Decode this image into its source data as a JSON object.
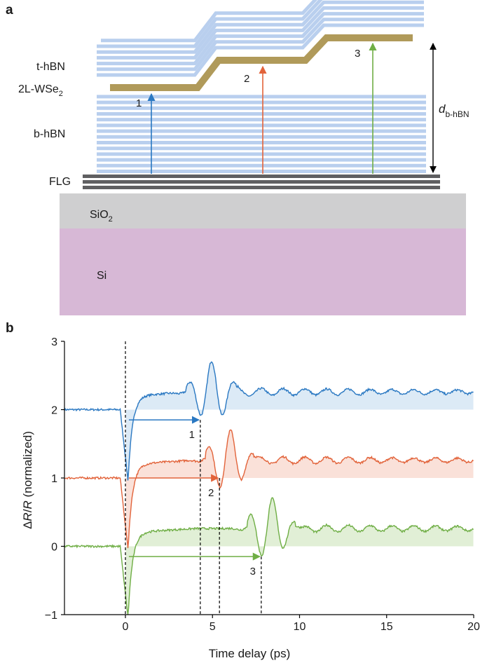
{
  "panel_a": {
    "label": "a",
    "layers": {
      "t_hbn": "t-hBN",
      "wse2_main": "2L-WSe",
      "wse2_sub": "2",
      "b_hbn": "b-hBN",
      "flg": "FLG",
      "sio2_main": "SiO",
      "sio2_sub": "2",
      "si": "Si"
    },
    "thickness_main": "d",
    "thickness_sub": "b-hBN",
    "positions": [
      "1",
      "2",
      "3"
    ],
    "colors": {
      "hbn": "#b9cfee",
      "wse2": "#b09a5a",
      "flg": "#5f5f61",
      "sio2": "#cfcfd0",
      "si": "#d7b8d6",
      "arrow1": "#2a78c2",
      "arrow2": "#e2633a",
      "arrow3": "#6fae45"
    }
  },
  "panel_b": {
    "label": "b",
    "chart_data": {
      "type": "line",
      "xlabel": "Time delay (ps)",
      "ylabel_parts": [
        "Δ",
        "R",
        "/",
        "R",
        " (normalized)"
      ],
      "xlim": [
        -3.5,
        20
      ],
      "ylim": [
        -1,
        3
      ],
      "xticks": [
        0,
        5,
        10,
        15,
        20
      ],
      "xtick_labels": [
        "0",
        "5",
        "10",
        "15",
        "20"
      ],
      "yticks": [
        -1,
        0,
        1,
        2,
        3
      ],
      "ytick_labels": [
        "−1",
        "0",
        "1",
        "2",
        "3"
      ],
      "series": [
        {
          "name": "1",
          "offset": 2,
          "color": "#2a78c2",
          "fill": "#d6e6f5",
          "echo_delay_ps": 4.3,
          "echo_min": 1.85,
          "arrival_ps": 4.95
        },
        {
          "name": "2",
          "offset": 1,
          "color": "#e2633a",
          "fill": "#f9dcd2",
          "echo_delay_ps": 5.4,
          "echo_min": 1.0,
          "arrival_ps": 5.85
        },
        {
          "name": "3",
          "offset": 0,
          "color": "#6fae45",
          "fill": "#dceccf",
          "echo_delay_ps": 7.8,
          "echo_min": -0.15,
          "arrival_ps": 8.25
        }
      ],
      "markers": [
        {
          "label": "1",
          "x_ps": 4.3
        },
        {
          "label": "2",
          "x_ps": 5.4
        },
        {
          "label": "3",
          "x_ps": 7.8
        }
      ]
    }
  }
}
